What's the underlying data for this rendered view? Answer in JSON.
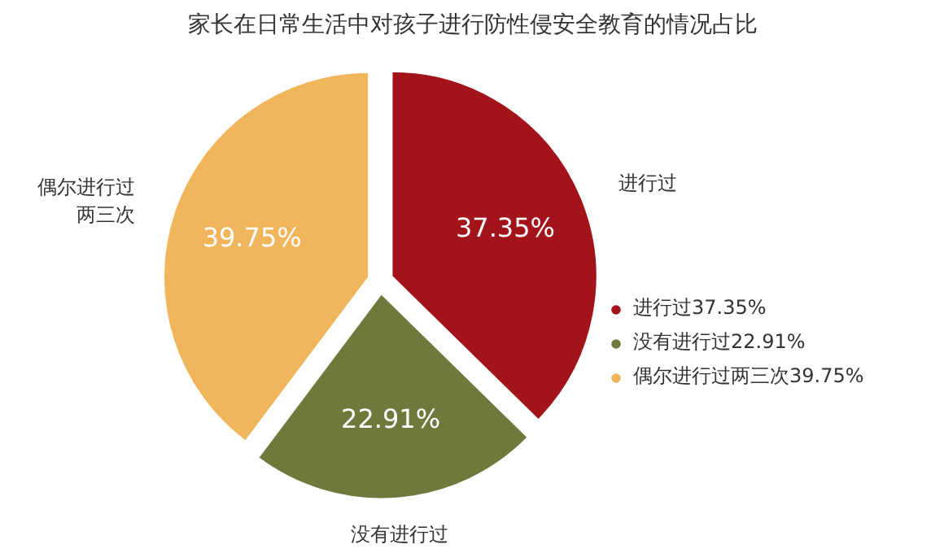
{
  "chart_data": {
    "type": "pie",
    "title": "家长在日常生活中对孩子进行防性侵安全教育的情况占比",
    "categories": [
      "进行过37.35%",
      "没有进行过22.91%",
      "偶尔进行过两三次39.75%"
    ],
    "values": [
      37.35,
      22.91,
      39.75
    ],
    "colors": [
      "#a3141a",
      "#6e7a3c",
      "#f1b65c"
    ],
    "value_labels": [
      "37.35%",
      "22.91%",
      "39.75%"
    ],
    "annotations": [
      "进行过",
      "没有进行过",
      "偶尔进行过两三次"
    ],
    "legend": "right"
  }
}
